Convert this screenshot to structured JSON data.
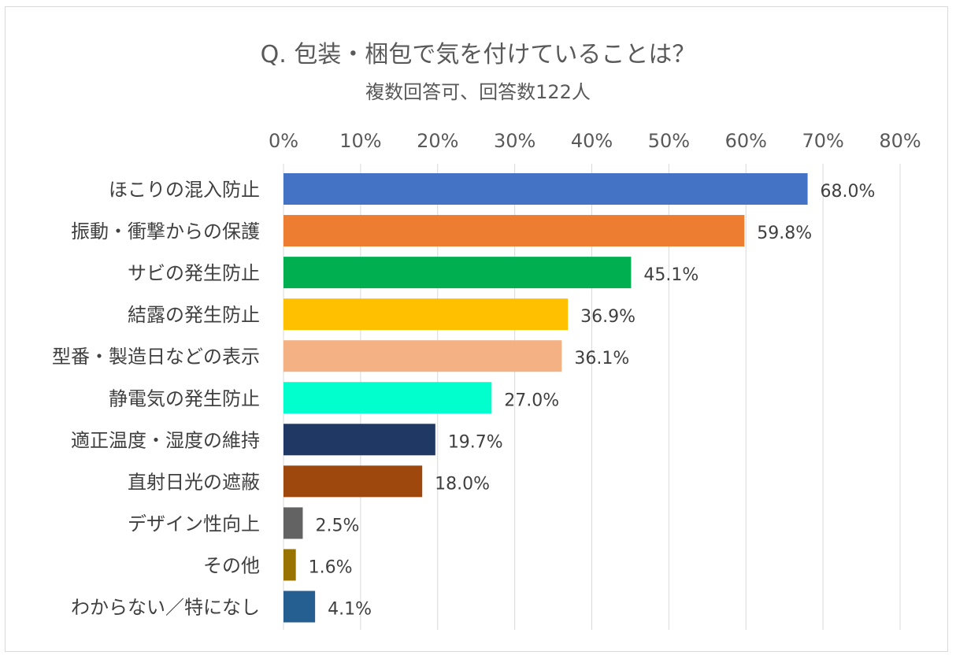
{
  "chart_data": {
    "type": "bar",
    "orientation": "horizontal",
    "title": "Q.  包装・梱包で気を付けていることは？",
    "subtitle": "複数回答可、回答数122人",
    "xlim": [
      0,
      80
    ],
    "x_ticks": [
      "0%",
      "10%",
      "20%",
      "30%",
      "40%",
      "50%",
      "60%",
      "70%",
      "80%"
    ],
    "categories": [
      "ほこりの混入防止",
      "振動・衝撃からの保護",
      "サビの発生防止",
      "結露の発生防止",
      "型番・製造日などの表示",
      "静電気の発生防止",
      "適正温度・湿度の維持",
      "直射日光の遮蔽",
      "デザイン性向上",
      "その他",
      "わからない／特になし"
    ],
    "values": [
      68.0,
      59.8,
      45.1,
      36.9,
      36.1,
      27.0,
      19.7,
      18.0,
      2.5,
      1.6,
      4.1
    ],
    "value_labels": [
      "68.0%",
      "59.8%",
      "45.1%",
      "36.9%",
      "36.1%",
      "27.0%",
      "19.7%",
      "18.0%",
      "2.5%",
      "1.6%",
      "4.1%"
    ],
    "colors": [
      "#4472C4",
      "#ED7D31",
      "#00B050",
      "#FFC000",
      "#F4B183",
      "#00FFCC",
      "#203864",
      "#9E480E",
      "#636363",
      "#997300",
      "#255E91"
    ],
    "grid": true,
    "legend": "none"
  }
}
